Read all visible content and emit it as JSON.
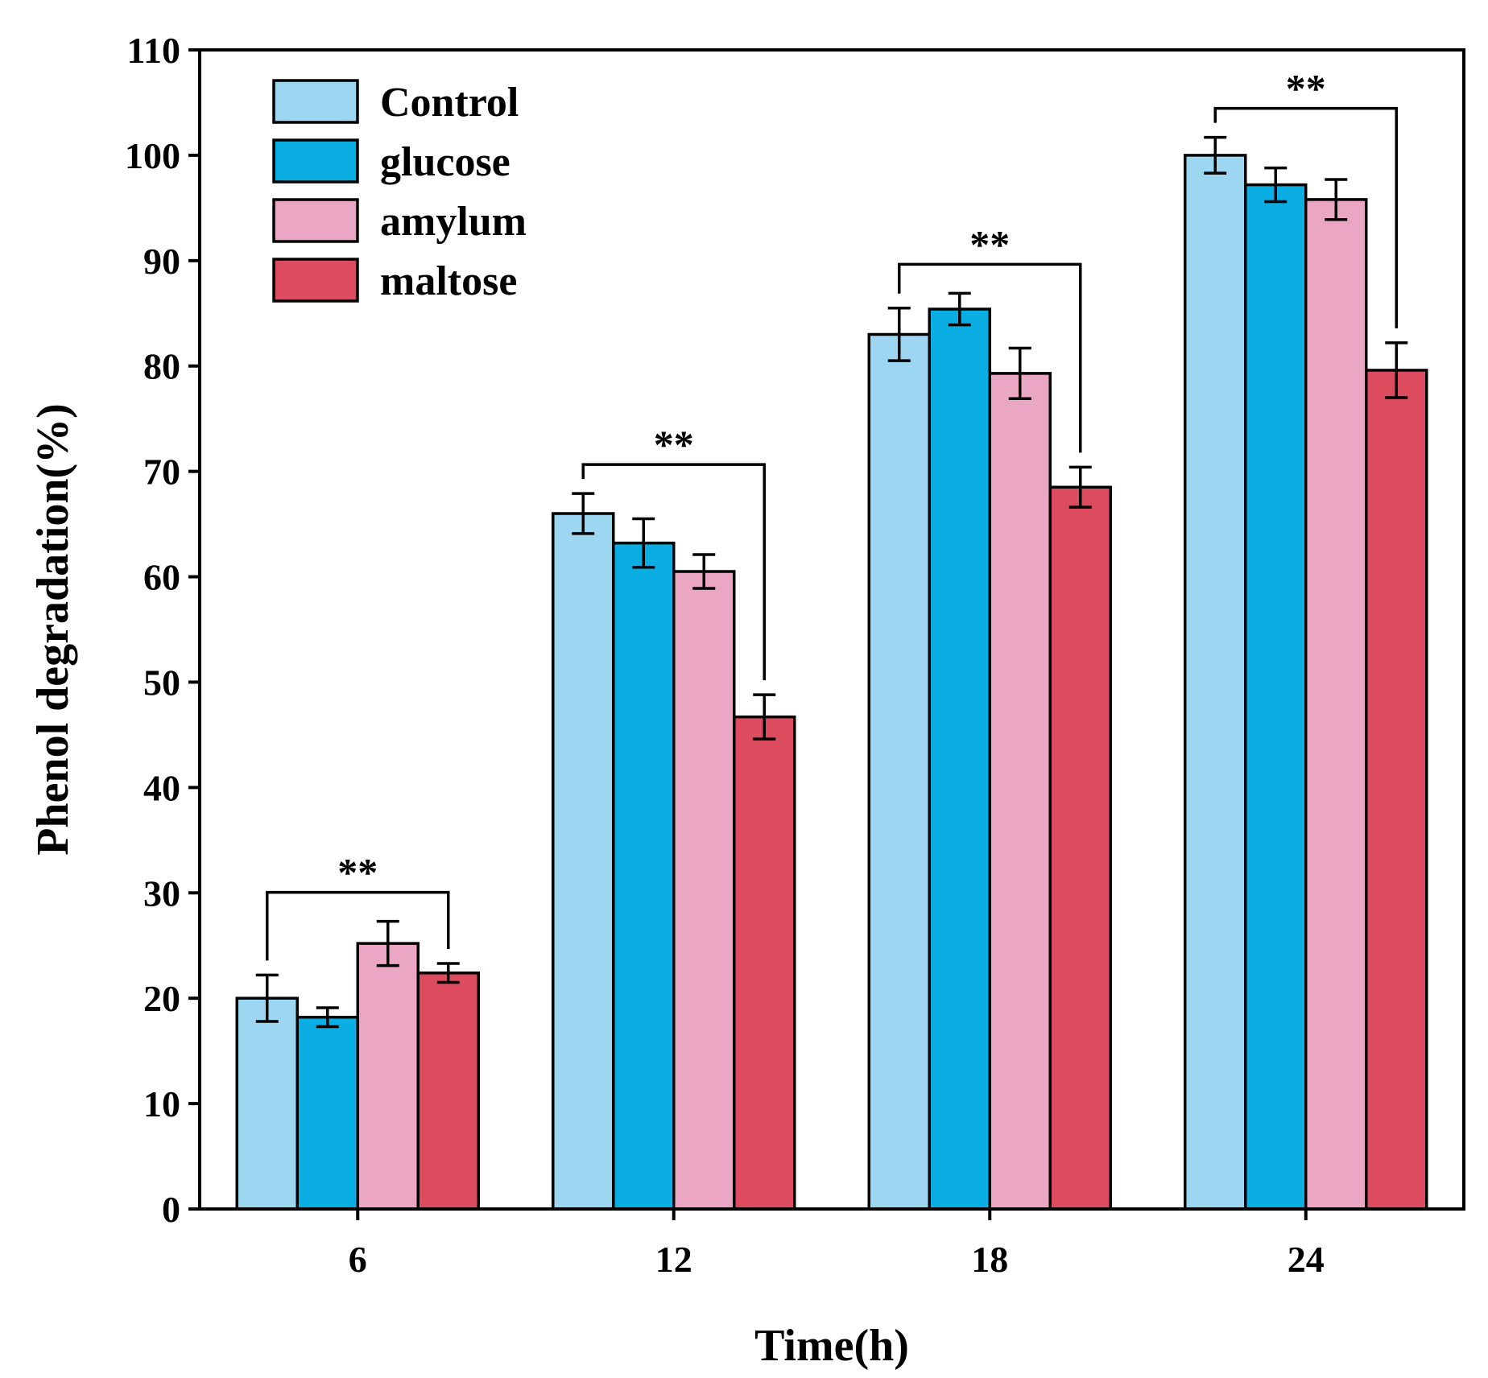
{
  "chart_data": {
    "type": "bar",
    "title": "",
    "xlabel": "Time(h)",
    "ylabel": "Phenol degradation(%)",
    "ylim": [
      0,
      110
    ],
    "yticks": [
      "0",
      "10",
      "20",
      "30",
      "40",
      "50",
      "60",
      "70",
      "80",
      "90",
      "100",
      "110"
    ],
    "categories": [
      "6",
      "12",
      "18",
      "24"
    ],
    "legend_position": "top-left",
    "series": [
      {
        "name": "Control",
        "color": "#9dd6f0",
        "values": [
          20,
          66,
          83,
          100
        ],
        "errors": [
          2.2,
          1.9,
          2.5,
          1.7
        ]
      },
      {
        "name": "glucose",
        "color": "#0aaee2",
        "values": [
          18.2,
          63.2,
          85.4,
          97.2
        ],
        "errors": [
          0.9,
          2.3,
          1.5,
          1.6
        ]
      },
      {
        "name": "amylum",
        "color": "#eaa6c3",
        "values": [
          25.2,
          60.5,
          79.3,
          95.8
        ],
        "errors": [
          2.1,
          1.6,
          2.4,
          1.9
        ]
      },
      {
        "name": "maltose",
        "color": "#dd4c5e",
        "values": [
          22.4,
          46.7,
          68.5,
          79.6
        ],
        "errors": [
          0.9,
          2.1,
          1.9,
          2.6
        ]
      }
    ],
    "significance": [
      {
        "category": "6",
        "from": "Control",
        "to": "maltose",
        "label": "**"
      },
      {
        "category": "12",
        "from": "Control",
        "to": "maltose",
        "label": "**"
      },
      {
        "category": "18",
        "from": "Control",
        "to": "maltose",
        "label": "**"
      },
      {
        "category": "24",
        "from": "Control",
        "to": "maltose",
        "label": "**"
      }
    ]
  }
}
